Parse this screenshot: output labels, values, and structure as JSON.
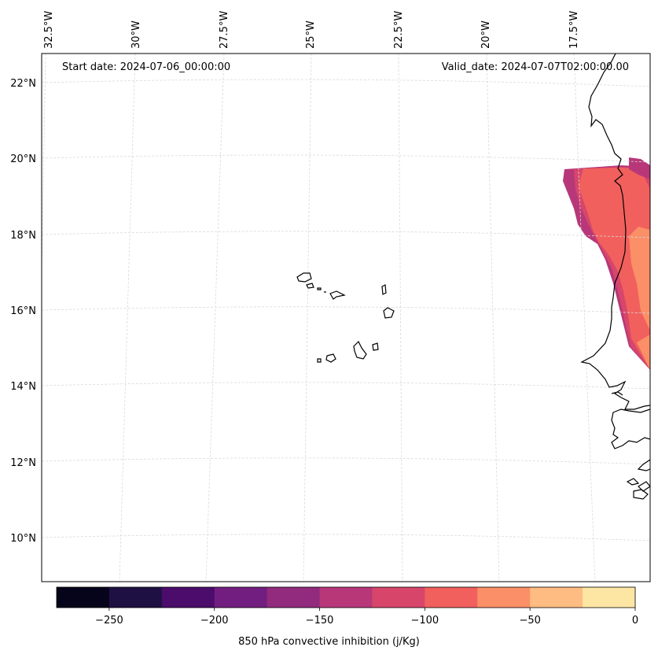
{
  "map": {
    "start_label": "Start date: 2024-07-06_00:00:00",
    "valid_label": "Valid_date: 2024-07-07T02:00:00.00",
    "lon_labels": [
      "32.5°W",
      "30°W",
      "27.5°W",
      "25°W",
      "22.5°W",
      "20°W",
      "17.5°W"
    ],
    "lat_labels": [
      "22°N",
      "20°N",
      "18°N",
      "16°N",
      "14°N",
      "12°N",
      "10°N"
    ],
    "variable_label": "850 hPa convective inhibition (j/Kg)"
  },
  "colorbar": {
    "bins": [
      -275,
      -250,
      -225,
      -200,
      -175,
      -150,
      -125,
      -100,
      -75,
      -50,
      -25,
      0
    ],
    "colors": [
      "#05041a",
      "#1f1044",
      "#4b0c6b",
      "#721e80",
      "#922b7d",
      "#b73779",
      "#d7466a",
      "#f1605d",
      "#fb8f67",
      "#febc82",
      "#fde6a4"
    ],
    "ticks": [
      {
        "value": -250,
        "label": "−250"
      },
      {
        "value": -200,
        "label": "−200"
      },
      {
        "value": -150,
        "label": "−150"
      },
      {
        "value": -100,
        "label": "−100"
      },
      {
        "value": -50,
        "label": "−50"
      },
      {
        "value": 0,
        "label": "0"
      }
    ]
  }
}
